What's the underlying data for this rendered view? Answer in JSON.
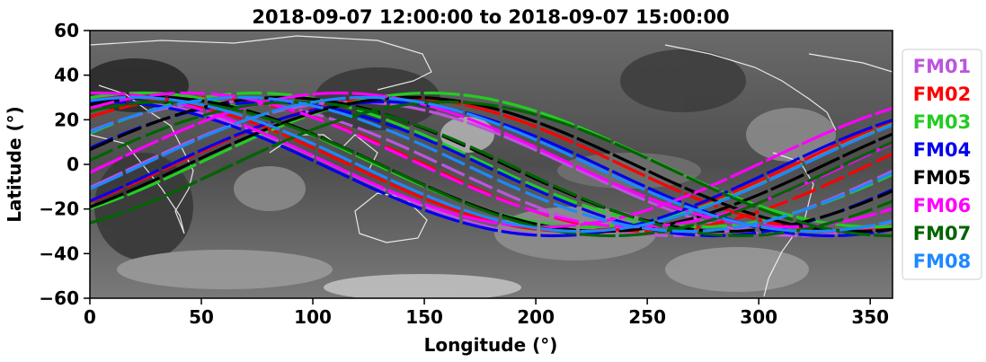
{
  "chart_data": {
    "type": "line",
    "title": "2018-09-07 12:00:00 to 2018-09-07 15:00:00",
    "xlabel": "Longitude (°)",
    "ylabel": "Latitude (°)",
    "xlim": [
      0,
      360
    ],
    "ylim": [
      -60,
      60
    ],
    "xticks": [
      "0",
      "50",
      "100",
      "150",
      "200",
      "250",
      "300",
      "350"
    ],
    "yticks": [
      "60",
      "40",
      "20",
      "0",
      "−20",
      "−40",
      "−60"
    ],
    "background": "grayscale infrared satellite mosaic with white coastlines",
    "grid": false,
    "legend_position": "right-outside",
    "series": [
      {
        "name": "FM01",
        "color": "#bb55dd",
        "offsets": [
          -8,
          42,
          98
        ]
      },
      {
        "name": "FM02",
        "color": "#ff0000",
        "offsets": [
          -4,
          30,
          118
        ]
      },
      {
        "name": "FM03",
        "color": "#22cc22",
        "offsets": [
          4,
          54,
          132
        ]
      },
      {
        "name": "FM04",
        "color": "#0000ee",
        "offsets": [
          -12,
          60,
          112
        ]
      },
      {
        "name": "FM05",
        "color": "#000000",
        "offsets": [
          10,
          66,
          124
        ]
      },
      {
        "name": "FM06",
        "color": "#ff00ff",
        "offsets": [
          -16,
          24,
          92
        ]
      },
      {
        "name": "FM07",
        "color": "#006400",
        "offsets": [
          14,
          72,
          140
        ]
      },
      {
        "name": "FM08",
        "color": "#1e88ff",
        "offsets": [
          0,
          48,
          104
        ]
      }
    ]
  }
}
